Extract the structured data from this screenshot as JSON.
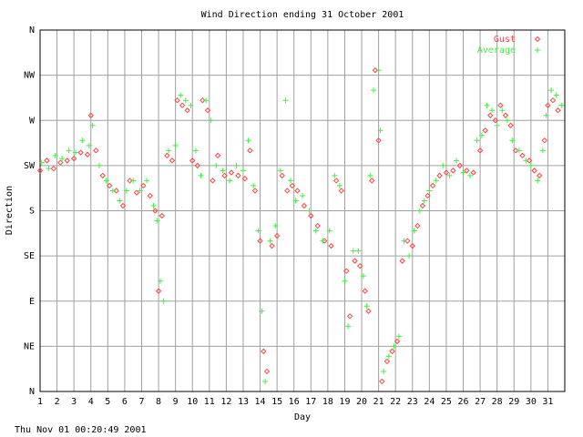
{
  "chart_data": {
    "type": "scatter",
    "title": "Wind Direction ending 31 October 2001",
    "x_label": "Day",
    "y_label": "Direction",
    "footer": "Thu Nov 01 00:20:49 2001",
    "xlim": [
      1,
      32
    ],
    "ylim": [
      0,
      360
    ],
    "xticks": [
      1,
      2,
      3,
      4,
      5,
      6,
      7,
      8,
      9,
      10,
      11,
      12,
      13,
      14,
      15,
      16,
      17,
      18,
      19,
      20,
      21,
      22,
      23,
      24,
      25,
      26,
      27,
      28,
      29,
      30,
      31
    ],
    "yticks": [
      {
        "value": 0,
        "label": "N"
      },
      {
        "value": 45,
        "label": "NE"
      },
      {
        "value": 90,
        "label": "E"
      },
      {
        "value": 135,
        "label": "SE"
      },
      {
        "value": 180,
        "label": "S"
      },
      {
        "value": 225,
        "label": "SW"
      },
      {
        "value": 270,
        "label": "W"
      },
      {
        "value": 315,
        "label": "NW"
      },
      {
        "value": 360,
        "label": "N"
      }
    ],
    "grid": true,
    "legend": "upper right",
    "series": [
      {
        "name": "Gust",
        "color": "#ff4444",
        "marker": "diamond",
        "x": [
          1.0,
          1.4,
          1.8,
          2.2,
          2.6,
          3.0,
          3.4,
          3.8,
          4.0,
          4.3,
          4.7,
          5.1,
          5.5,
          5.9,
          6.3,
          6.7,
          7.1,
          7.5,
          7.8,
          8.0,
          8.2,
          8.5,
          8.8,
          9.1,
          9.4,
          9.7,
          10.0,
          10.3,
          10.6,
          10.9,
          11.2,
          11.5,
          11.9,
          12.3,
          12.7,
          13.1,
          13.4,
          13.7,
          14.0,
          14.2,
          14.4,
          14.7,
          15.0,
          15.3,
          15.6,
          15.9,
          16.2,
          16.6,
          17.0,
          17.4,
          17.8,
          18.2,
          18.5,
          18.8,
          19.1,
          19.3,
          19.6,
          19.9,
          20.2,
          20.4,
          20.6,
          20.8,
          21.0,
          21.2,
          21.5,
          21.8,
          22.1,
          22.4,
          22.7,
          23.0,
          23.3,
          23.6,
          23.9,
          24.2,
          24.6,
          25.0,
          25.4,
          25.8,
          26.2,
          26.6,
          27.0,
          27.3,
          27.6,
          27.9,
          28.2,
          28.5,
          28.8,
          29.1,
          29.5,
          29.9,
          30.2,
          30.5,
          30.8,
          31.0,
          31.3,
          31.6
        ],
        "values": [
          220,
          230,
          222,
          228,
          230,
          232,
          238,
          236,
          275,
          240,
          215,
          205,
          200,
          185,
          210,
          198,
          205,
          195,
          180,
          100,
          175,
          235,
          230,
          290,
          285,
          280,
          230,
          225,
          290,
          280,
          210,
          235,
          215,
          218,
          215,
          212,
          240,
          200,
          150,
          40,
          20,
          145,
          155,
          215,
          200,
          205,
          200,
          185,
          175,
          165,
          150,
          145,
          210,
          200,
          120,
          75,
          130,
          125,
          100,
          80,
          210,
          320,
          250,
          10,
          30,
          40,
          50,
          130,
          150,
          145,
          165,
          185,
          195,
          205,
          215,
          218,
          220,
          225,
          220,
          218,
          240,
          260,
          275,
          270,
          285,
          275,
          265,
          240,
          235,
          230,
          220,
          215,
          250,
          285,
          290,
          280
        ]
      },
      {
        "name": "Average",
        "color": "#44ee44",
        "marker": "plus",
        "x": [
          1.1,
          1.5,
          1.9,
          2.3,
          2.7,
          3.1,
          3.5,
          3.9,
          4.1,
          4.5,
          4.9,
          5.3,
          5.7,
          6.1,
          6.5,
          6.9,
          7.3,
          7.7,
          7.9,
          8.1,
          8.3,
          8.6,
          9.0,
          9.3,
          9.6,
          9.9,
          10.2,
          10.5,
          10.8,
          11.1,
          11.4,
          11.8,
          12.2,
          12.6,
          13.0,
          13.3,
          13.6,
          13.9,
          14.1,
          14.3,
          14.6,
          14.9,
          15.2,
          15.5,
          15.8,
          16.1,
          16.5,
          16.9,
          17.3,
          17.7,
          18.1,
          18.4,
          18.7,
          19.0,
          19.2,
          19.5,
          19.8,
          20.1,
          20.3,
          20.5,
          20.7,
          21.0,
          21.1,
          21.3,
          21.6,
          21.9,
          22.2,
          22.5,
          22.8,
          23.1,
          23.4,
          23.7,
          24.0,
          24.4,
          24.8,
          25.2,
          25.6,
          26.0,
          26.4,
          26.8,
          27.1,
          27.4,
          27.7,
          28.0,
          28.3,
          28.6,
          28.9,
          29.3,
          29.7,
          30.0,
          30.4,
          30.7,
          30.9,
          31.2,
          31.5,
          31.8
        ],
        "values": [
          228,
          222,
          235,
          232,
          240,
          238,
          250,
          245,
          265,
          225,
          210,
          200,
          190,
          200,
          210,
          200,
          210,
          185,
          170,
          110,
          90,
          240,
          245,
          295,
          290,
          285,
          240,
          215,
          290,
          270,
          225,
          220,
          210,
          225,
          220,
          250,
          205,
          160,
          80,
          10,
          150,
          165,
          220,
          290,
          210,
          190,
          195,
          180,
          160,
          150,
          160,
          215,
          205,
          110,
          65,
          140,
          140,
          115,
          85,
          215,
          300,
          320,
          260,
          20,
          35,
          45,
          55,
          150,
          135,
          160,
          180,
          190,
          200,
          210,
          225,
          215,
          230,
          218,
          215,
          250,
          255,
          285,
          280,
          265,
          280,
          270,
          250,
          240,
          230,
          225,
          210,
          240,
          275,
          300,
          295,
          285
        ]
      }
    ]
  }
}
